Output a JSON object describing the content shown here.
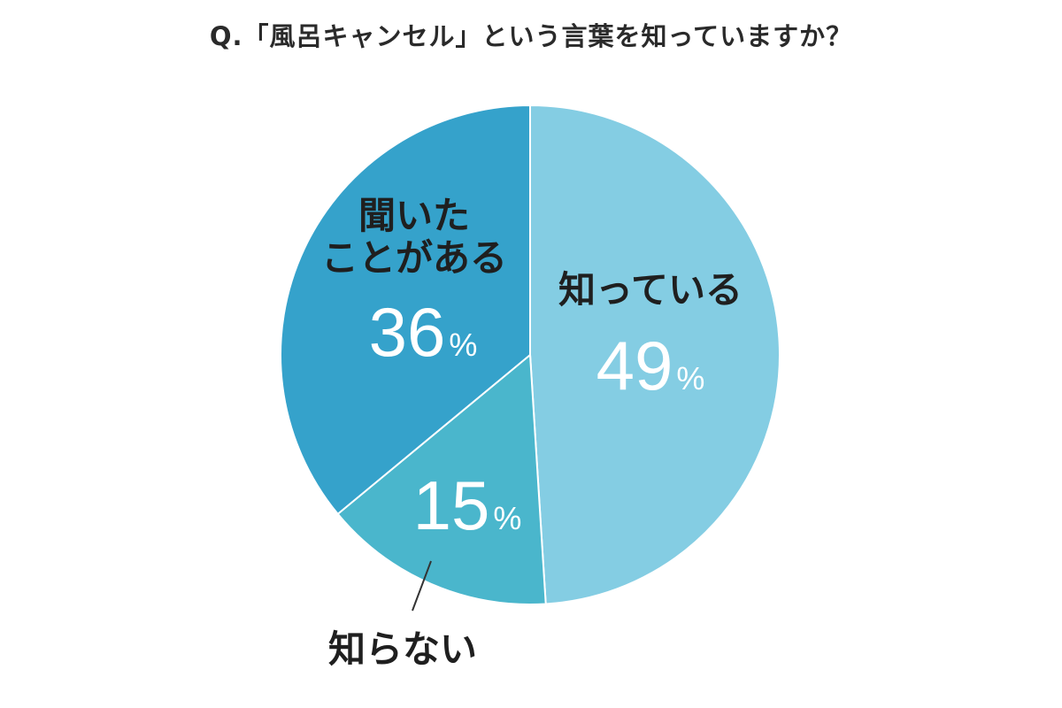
{
  "chart_data": {
    "type": "pie",
    "title": "Q.「風呂キャンセル」という言葉を知っていますか？",
    "unit": "%",
    "slices": [
      {
        "label": "知っている",
        "value": 49,
        "color": "#84cde3"
      },
      {
        "label": "知らない",
        "value": 15,
        "color": "#4ab6cc"
      },
      {
        "label": "聞いたことがある",
        "label_lines": [
          "聞いた",
          "ことがある"
        ],
        "value": 36,
        "color": "#35a2cb"
      }
    ]
  }
}
